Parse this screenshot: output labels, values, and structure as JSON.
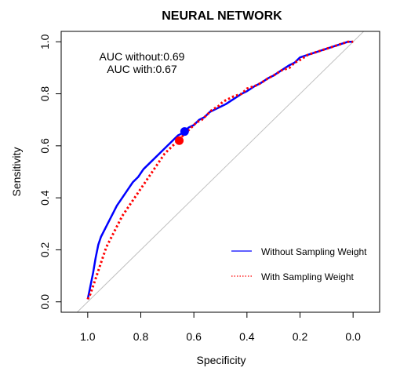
{
  "chart_data": {
    "type": "line",
    "title": "NEURAL NETWORK",
    "xlabel": "Specificity",
    "ylabel": "Sensitivity",
    "xlim": [
      1.1,
      -0.1
    ],
    "ylim": [
      -0.04,
      1.04
    ],
    "x_ticks": [
      "1.0",
      "0.8",
      "0.6",
      "0.4",
      "0.2",
      "0.0"
    ],
    "x_tick_values": [
      1.0,
      0.8,
      0.6,
      0.4,
      0.2,
      0.0
    ],
    "y_ticks": [
      "0.0",
      "0.2",
      "0.4",
      "0.6",
      "0.8",
      "1.0"
    ],
    "y_tick_values": [
      0.0,
      0.2,
      0.4,
      0.6,
      0.8,
      1.0
    ],
    "annotations": [
      "AUC without:0.69",
      "AUC with:0.67"
    ],
    "reference_line": true,
    "legend_position": "bottom-right",
    "series": [
      {
        "name": "Without Sampling Weight",
        "color": "#0000ff",
        "style": "solid",
        "x": [
          1.0,
          0.99,
          0.98,
          0.97,
          0.96,
          0.95,
          0.93,
          0.91,
          0.89,
          0.87,
          0.85,
          0.83,
          0.81,
          0.79,
          0.77,
          0.75,
          0.72,
          0.7,
          0.68,
          0.66,
          0.64,
          0.62,
          0.6,
          0.58,
          0.56,
          0.54,
          0.52,
          0.5,
          0.48,
          0.45,
          0.42,
          0.4,
          0.37,
          0.35,
          0.32,
          0.3,
          0.27,
          0.24,
          0.22,
          0.2,
          0.17,
          0.14,
          0.11,
          0.08,
          0.05,
          0.02,
          0.0
        ],
        "y": [
          0.01,
          0.06,
          0.11,
          0.17,
          0.22,
          0.25,
          0.29,
          0.33,
          0.37,
          0.4,
          0.43,
          0.46,
          0.48,
          0.51,
          0.53,
          0.55,
          0.58,
          0.6,
          0.62,
          0.64,
          0.65,
          0.67,
          0.68,
          0.7,
          0.71,
          0.73,
          0.74,
          0.75,
          0.76,
          0.78,
          0.8,
          0.81,
          0.83,
          0.84,
          0.86,
          0.87,
          0.89,
          0.91,
          0.92,
          0.94,
          0.95,
          0.96,
          0.97,
          0.98,
          0.99,
          1.0,
          1.0
        ]
      },
      {
        "name": "With Sampling Weight",
        "color": "#ff0000",
        "style": "dotted",
        "x": [
          1.0,
          0.99,
          0.98,
          0.97,
          0.96,
          0.95,
          0.94,
          0.93,
          0.91,
          0.89,
          0.87,
          0.85,
          0.83,
          0.81,
          0.79,
          0.77,
          0.75,
          0.73,
          0.71,
          0.69,
          0.67,
          0.65,
          0.63,
          0.61,
          0.59,
          0.57,
          0.55,
          0.53,
          0.51,
          0.49,
          0.47,
          0.45,
          0.42,
          0.4,
          0.37,
          0.35,
          0.32,
          0.3,
          0.27,
          0.24,
          0.22,
          0.2,
          0.17,
          0.14,
          0.11,
          0.08,
          0.05,
          0.02,
          0.0
        ],
        "y": [
          0.01,
          0.03,
          0.06,
          0.09,
          0.12,
          0.15,
          0.18,
          0.21,
          0.25,
          0.29,
          0.33,
          0.36,
          0.39,
          0.42,
          0.45,
          0.48,
          0.51,
          0.54,
          0.57,
          0.59,
          0.61,
          0.63,
          0.65,
          0.67,
          0.69,
          0.7,
          0.72,
          0.74,
          0.75,
          0.77,
          0.78,
          0.79,
          0.8,
          0.82,
          0.83,
          0.84,
          0.86,
          0.87,
          0.89,
          0.9,
          0.92,
          0.93,
          0.95,
          0.96,
          0.97,
          0.98,
          0.99,
          1.0,
          1.0
        ]
      }
    ],
    "highlight_points": [
      {
        "series": "Without Sampling Weight",
        "x": 0.635,
        "y": 0.655,
        "color": "#0000ff"
      },
      {
        "series": "With Sampling Weight",
        "x": 0.655,
        "y": 0.62,
        "color": "#ff0000"
      }
    ],
    "reference_color": "#c0c0c0"
  }
}
